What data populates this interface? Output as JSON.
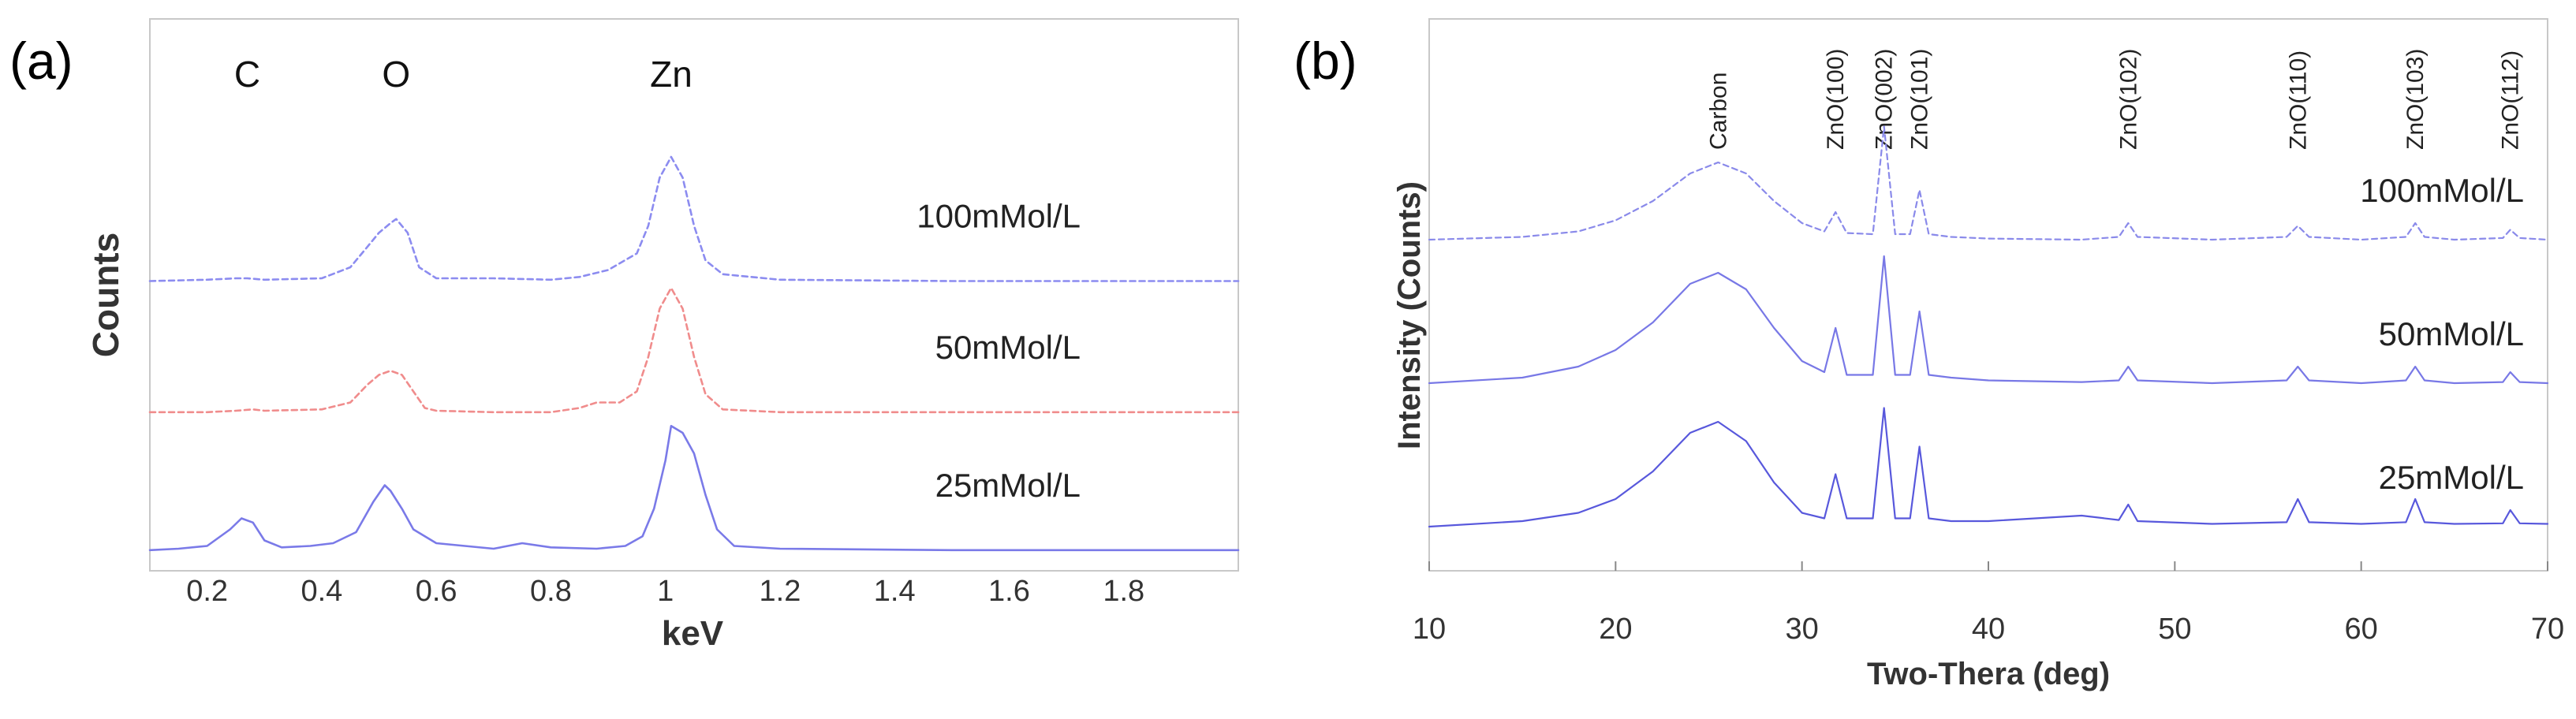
{
  "chart_data": [
    {
      "type": "line",
      "panel_label": "(a)",
      "title": "",
      "xlabel": "keV",
      "ylabel": "Counts",
      "xlim": [
        0.1,
        2.0
      ],
      "ylim": [
        0,
        4
      ],
      "x_ticks": [
        0.2,
        0.4,
        0.6,
        0.8,
        1,
        1.2,
        1.4,
        1.6,
        1.8
      ],
      "x_tick_labels": [
        "0.2",
        "0.4",
        "0.6",
        "0.8",
        "1",
        "1.2",
        "1.4",
        "1.6",
        "1.8"
      ],
      "y_ticks_shown": false,
      "grid": false,
      "annotations": [
        {
          "text": "C",
          "x": 0.27
        },
        {
          "text": "O",
          "x": 0.53
        },
        {
          "text": "Zn",
          "x": 1.01
        }
      ],
      "series": [
        {
          "name": "100mMol/L",
          "color": "#8c8cf0",
          "linestyle": "dashed",
          "baseline": 2.1,
          "x": [
            0.1,
            0.2,
            0.25,
            0.27,
            0.3,
            0.4,
            0.45,
            0.48,
            0.5,
            0.52,
            0.53,
            0.55,
            0.57,
            0.6,
            0.7,
            0.8,
            0.85,
            0.9,
            0.95,
            0.97,
            0.99,
            1.01,
            1.03,
            1.05,
            1.07,
            1.1,
            1.2,
            1.5,
            2.0
          ],
          "values": [
            2.1,
            2.11,
            2.12,
            2.12,
            2.11,
            2.12,
            2.2,
            2.35,
            2.45,
            2.52,
            2.55,
            2.45,
            2.2,
            2.12,
            2.12,
            2.11,
            2.13,
            2.18,
            2.3,
            2.5,
            2.85,
            3.0,
            2.85,
            2.5,
            2.25,
            2.15,
            2.11,
            2.1,
            2.1
          ]
        },
        {
          "name": "50mMol/L",
          "color": "#f08c8c",
          "linestyle": "dashed",
          "baseline": 1.15,
          "x": [
            0.1,
            0.2,
            0.25,
            0.28,
            0.3,
            0.4,
            0.45,
            0.48,
            0.5,
            0.52,
            0.54,
            0.56,
            0.58,
            0.6,
            0.7,
            0.8,
            0.85,
            0.88,
            0.92,
            0.95,
            0.97,
            0.99,
            1.01,
            1.03,
            1.05,
            1.07,
            1.1,
            1.2,
            1.5,
            2.0
          ],
          "values": [
            1.15,
            1.15,
            1.16,
            1.17,
            1.16,
            1.17,
            1.22,
            1.35,
            1.42,
            1.45,
            1.42,
            1.3,
            1.18,
            1.16,
            1.15,
            1.15,
            1.18,
            1.22,
            1.22,
            1.3,
            1.55,
            1.9,
            2.05,
            1.9,
            1.55,
            1.28,
            1.17,
            1.15,
            1.15,
            1.15
          ]
        },
        {
          "name": "25mMol/L",
          "color": "#7a7ae8",
          "linestyle": "solid",
          "baseline": 0.15,
          "x": [
            0.1,
            0.15,
            0.2,
            0.24,
            0.26,
            0.28,
            0.3,
            0.33,
            0.38,
            0.42,
            0.46,
            0.49,
            0.51,
            0.52,
            0.54,
            0.56,
            0.6,
            0.65,
            0.7,
            0.75,
            0.8,
            0.88,
            0.93,
            0.96,
            0.98,
            1.0,
            1.01,
            1.03,
            1.05,
            1.07,
            1.09,
            1.12,
            1.2,
            1.5,
            2.0
          ],
          "values": [
            0.15,
            0.16,
            0.18,
            0.3,
            0.38,
            0.35,
            0.22,
            0.17,
            0.18,
            0.2,
            0.28,
            0.5,
            0.62,
            0.58,
            0.45,
            0.3,
            0.2,
            0.18,
            0.16,
            0.2,
            0.17,
            0.16,
            0.18,
            0.25,
            0.45,
            0.8,
            1.05,
            1.0,
            0.85,
            0.55,
            0.3,
            0.18,
            0.16,
            0.15,
            0.15
          ]
        }
      ]
    },
    {
      "type": "line",
      "panel_label": "(b)",
      "title": "",
      "xlabel": "Two-Thera (deg)",
      "ylabel": "Intensity (Counts)",
      "xlim": [
        10,
        70
      ],
      "ylim": [
        0,
        10
      ],
      "x_ticks": [
        10,
        20,
        30,
        40,
        50,
        60,
        70
      ],
      "x_tick_labels": [
        "10",
        "20",
        "30",
        "40",
        "50",
        "60",
        "70"
      ],
      "y_ticks_shown": false,
      "grid": false,
      "annotations": [
        {
          "text": "Carbon",
          "x": 25.5
        },
        {
          "text": "ZnO(100)",
          "x": 31.8
        },
        {
          "text": "ZnO(002)",
          "x": 34.4
        },
        {
          "text": "ZnO(101)",
          "x": 36.3
        },
        {
          "text": "ZnO(102)",
          "x": 47.5
        },
        {
          "text": "ZnO(110)",
          "x": 56.6
        },
        {
          "text": "ZnO(103)",
          "x": 62.9
        },
        {
          "text": "ZnO(112)",
          "x": 68.0
        }
      ],
      "series": [
        {
          "name": "100mMol/L",
          "color": "#8a8aea",
          "linestyle": "dashed",
          "baseline": 6.0,
          "x": [
            10,
            15,
            18,
            20,
            22,
            24,
            25.5,
            27,
            28.5,
            30,
            31.2,
            31.8,
            32.4,
            33.8,
            34.4,
            35.0,
            35.8,
            36.3,
            36.8,
            38,
            40,
            45,
            47,
            47.5,
            48,
            52,
            56,
            56.6,
            57.2,
            60,
            62.4,
            62.9,
            63.4,
            65,
            67.6,
            68.0,
            68.5,
            70
          ],
          "values": [
            6.0,
            6.05,
            6.15,
            6.35,
            6.7,
            7.2,
            7.4,
            7.2,
            6.7,
            6.3,
            6.15,
            6.5,
            6.12,
            6.1,
            8.05,
            6.1,
            6.1,
            6.9,
            6.1,
            6.05,
            6.02,
            6.0,
            6.05,
            6.3,
            6.05,
            6.0,
            6.05,
            6.25,
            6.05,
            6.0,
            6.05,
            6.3,
            6.05,
            6.0,
            6.03,
            6.18,
            6.03,
            6.0
          ]
        },
        {
          "name": "50mMol/L",
          "color": "#7878e6",
          "linestyle": "solid",
          "baseline": 3.4,
          "x": [
            10,
            15,
            18,
            20,
            22,
            24,
            25.5,
            27,
            28.5,
            30,
            31.2,
            31.8,
            32.4,
            33.8,
            34.4,
            35.0,
            35.8,
            36.3,
            36.8,
            38,
            40,
            45,
            47,
            47.5,
            48,
            52,
            56,
            56.6,
            57.2,
            60,
            62.4,
            62.9,
            63.4,
            65,
            67.6,
            68.0,
            68.5,
            70
          ],
          "values": [
            3.4,
            3.5,
            3.7,
            4.0,
            4.5,
            5.2,
            5.4,
            5.1,
            4.4,
            3.8,
            3.6,
            4.4,
            3.55,
            3.55,
            5.7,
            3.55,
            3.55,
            4.7,
            3.55,
            3.5,
            3.45,
            3.42,
            3.45,
            3.7,
            3.45,
            3.4,
            3.45,
            3.7,
            3.45,
            3.4,
            3.45,
            3.7,
            3.45,
            3.4,
            3.42,
            3.6,
            3.42,
            3.4
          ]
        },
        {
          "name": "25mMol/L",
          "color": "#5858dc",
          "linestyle": "solid",
          "baseline": 0.8,
          "x": [
            10,
            15,
            18,
            20,
            22,
            24,
            25.5,
            27,
            28.5,
            30,
            31.2,
            31.8,
            32.4,
            33.8,
            34.4,
            35.0,
            35.8,
            36.3,
            36.8,
            38,
            40,
            45,
            47,
            47.5,
            48,
            52,
            56,
            56.6,
            57.2,
            60,
            62.4,
            62.9,
            63.4,
            65,
            67.6,
            68.0,
            68.5,
            70
          ],
          "values": [
            0.8,
            0.9,
            1.05,
            1.3,
            1.8,
            2.5,
            2.7,
            2.35,
            1.6,
            1.05,
            0.95,
            1.75,
            0.95,
            0.95,
            2.95,
            0.95,
            0.95,
            2.25,
            0.95,
            0.9,
            0.9,
            1.0,
            0.92,
            1.2,
            0.9,
            0.85,
            0.88,
            1.3,
            0.88,
            0.85,
            0.88,
            1.3,
            0.88,
            0.85,
            0.86,
            1.1,
            0.86,
            0.85
          ]
        }
      ]
    }
  ]
}
